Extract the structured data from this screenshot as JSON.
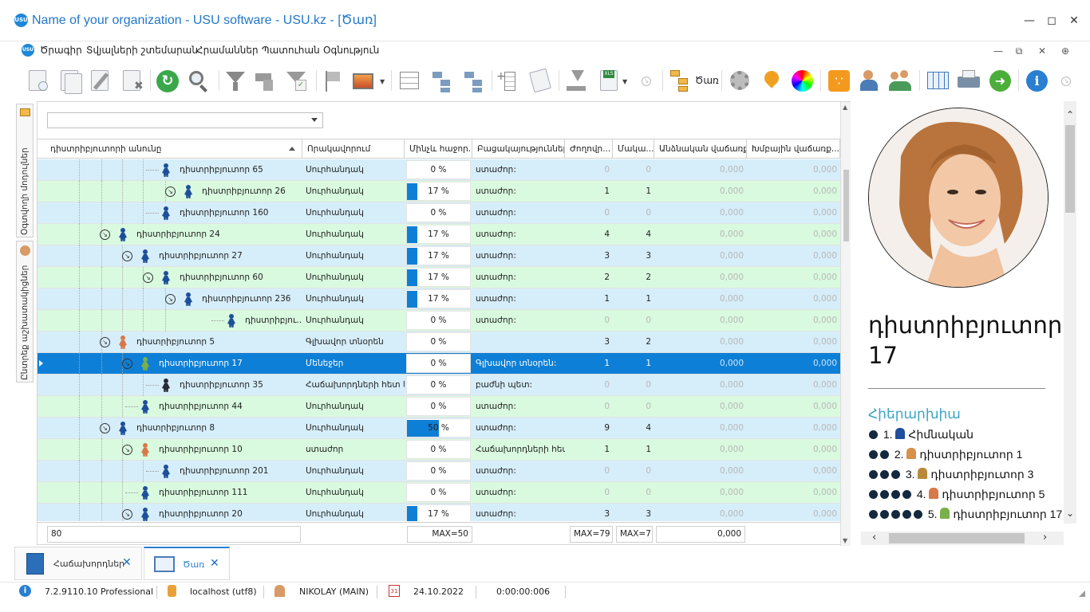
{
  "window": {
    "title": "Name of your organization - USU software - USU.kz - [Ծառ]",
    "logo_text": "USU"
  },
  "menu": {
    "items": [
      "Ծրագիր",
      "Տվյալների շտեմարան",
      "Հրամաններ",
      "Պատուհան",
      "Օգնություն"
    ]
  },
  "toolbar": {
    "tree_label": "Ծառ"
  },
  "sidebar": {
    "tabs": [
      "Օգտվողի մոդուլներ",
      "Ընտրեք աշխատակիցներ"
    ]
  },
  "grid": {
    "filter_value": "",
    "columns": [
      "դիստրիբյուտորի անունը",
      "Որակավորում",
      "Մինչև հաջոր...",
      "Բացակայություններ",
      "Ժողովր...",
      "Մակա...",
      "Անձնական վաճառք...",
      "Խմբային վաճառք..."
    ],
    "rows": [
      {
        "name": "դիստրիբյուտոր 65",
        "qualification": "Սուրհանդակ",
        "progress": 0,
        "pct_text": "0 %",
        "absence": "ստաժոր:",
        "people": "0",
        "level": "0",
        "personal": "0,000",
        "group": "0,000",
        "expander": false,
        "color": "blue"
      },
      {
        "name": "դիստրիբյուտոր 26",
        "qualification": "Սուրհանդակ",
        "progress": 17,
        "pct_text": "17 %",
        "absence": "ստաժոր:",
        "people": "1",
        "level": "1",
        "personal": "0,000",
        "group": "0,000",
        "expander": true,
        "color": "green"
      },
      {
        "name": "դիստրիբյուտոր 160",
        "qualification": "Սուրհանդակ",
        "progress": 0,
        "pct_text": "0 %",
        "absence": "ստաժոր:",
        "people": "0",
        "level": "0",
        "personal": "0,000",
        "group": "0,000",
        "expander": false,
        "color": "blue"
      },
      {
        "name": "դիստրիբյուտոր 24",
        "qualification": "Սուրհանդակ",
        "progress": 17,
        "pct_text": "17 %",
        "absence": "ստաժոր:",
        "people": "4",
        "level": "4",
        "personal": "0,000",
        "group": "0,000",
        "expander": true,
        "color": "green"
      },
      {
        "name": "դիստրիբյուտոր 27",
        "qualification": "Սուրհանդակ",
        "progress": 17,
        "pct_text": "17 %",
        "absence": "ստաժոր:",
        "people": "3",
        "level": "3",
        "personal": "0,000",
        "group": "0,000",
        "expander": true,
        "color": "blue"
      },
      {
        "name": "դիստրիբյուտոր 60",
        "qualification": "Սուրհանդակ",
        "progress": 17,
        "pct_text": "17 %",
        "absence": "ստաժոր:",
        "people": "2",
        "level": "2",
        "personal": "0,000",
        "group": "0,000",
        "expander": true,
        "color": "green"
      },
      {
        "name": "դիստրիբյուտոր 236",
        "qualification": "Սուրհանդակ",
        "progress": 17,
        "pct_text": "17 %",
        "absence": "ստաժոր:",
        "people": "1",
        "level": "1",
        "personal": "0,000",
        "group": "0,000",
        "expander": true,
        "color": "blue"
      },
      {
        "name": "դիստրիբյու...",
        "qualification": "Սուրհանդակ",
        "progress": 0,
        "pct_text": "0 %",
        "absence": "ստաժոր:",
        "people": "0",
        "level": "0",
        "personal": "0,000",
        "group": "0,000",
        "expander": false,
        "color": "green"
      },
      {
        "name": "դիստրիբյուտոր 5",
        "qualification": "Գլխավոր տնօրեն",
        "progress": 0,
        "pct_text": "0 %",
        "absence": "",
        "people": "3",
        "level": "2",
        "personal": "0,000",
        "group": "0,000",
        "expander": true,
        "color": "blue"
      },
      {
        "name": "դիստրիբյուտոր 17",
        "qualification": "Մենեջեր",
        "progress": 0,
        "pct_text": "0 %",
        "absence": "Գլխավոր տնօրեն:",
        "people": "1",
        "level": "1",
        "personal": "0,000",
        "group": "0,000",
        "expander": true,
        "color": "sel"
      },
      {
        "name": "դիստրիբյուտոր 35",
        "qualification": "Հաճախորդների հետ կ...",
        "progress": 0,
        "pct_text": "0 %",
        "absence": "բաժնի պետ:",
        "people": "0",
        "level": "0",
        "personal": "0,000",
        "group": "0,000",
        "expander": false,
        "color": "blue"
      },
      {
        "name": "դիստրիբյուտոր 44",
        "qualification": "Սուրհանդակ",
        "progress": 0,
        "pct_text": "0 %",
        "absence": "ստաժոր:",
        "people": "0",
        "level": "0",
        "personal": "0,000",
        "group": "0,000",
        "expander": false,
        "color": "green"
      },
      {
        "name": "դիստրիբյուտոր 8",
        "qualification": "Սուրհանդակ",
        "progress": 50,
        "pct_text": "50 %",
        "absence": "ստաժոր:",
        "people": "9",
        "level": "4",
        "personal": "0,000",
        "group": "0,000",
        "expander": true,
        "color": "blue"
      },
      {
        "name": "դիստրիբյուտոր 10",
        "qualification": "ստաժոր",
        "progress": 0,
        "pct_text": "0 %",
        "absence": "Հաճախորդների հետ...",
        "people": "1",
        "level": "1",
        "personal": "0,000",
        "group": "0,000",
        "expander": true,
        "color": "green"
      },
      {
        "name": "դիստրիբյուտոր 201",
        "qualification": "Սուրհանդակ",
        "progress": 0,
        "pct_text": "0 %",
        "absence": "ստաժոր:",
        "people": "0",
        "level": "0",
        "personal": "0,000",
        "group": "0,000",
        "expander": false,
        "color": "blue"
      },
      {
        "name": "դիստրիբյուտոր 111",
        "qualification": "Սուրհանդակ",
        "progress": 0,
        "pct_text": "0 %",
        "absence": "ստաժոր:",
        "people": "0",
        "level": "0",
        "personal": "0,000",
        "group": "0,000",
        "expander": false,
        "color": "green"
      },
      {
        "name": "դիստրիբյուտոր 20",
        "qualification": "Սուրհանդակ",
        "progress": 17,
        "pct_text": "17 %",
        "absence": "ստաժոր:",
        "people": "3",
        "level": "3",
        "personal": "0,000",
        "group": "0,000",
        "expander": true,
        "color": "blue"
      }
    ],
    "footer": {
      "count": "80",
      "max_progress": "MAX=50",
      "max_people": "MAX=79",
      "max_level": "MAX=7",
      "sum_personal": "0,000"
    }
  },
  "details": {
    "name": "դիստրիբյուտոր 17",
    "hierarchy_title": "Հիերարխիա",
    "hierarchy": [
      {
        "level": 1,
        "label": "1.",
        "text": "Հիմնական"
      },
      {
        "level": 2,
        "label": "2.",
        "text": "դիստրիբյուտոր 1"
      },
      {
        "level": 3,
        "label": "3.",
        "text": "դիստրիբյուտոր 3"
      },
      {
        "level": 4,
        "label": "4.",
        "text": "դիստրիբյուտոր 5"
      },
      {
        "level": 5,
        "label": "5.",
        "text": "դիստրիբյուտոր 17"
      }
    ]
  },
  "bottom_tabs": [
    {
      "label": "Հաճախորդներ"
    },
    {
      "label": "Ծառ"
    }
  ],
  "status": {
    "version": "7.2.9110.10 Professional",
    "db": "localhost (utf8)",
    "user": "NIKOLAY (MAIN)",
    "date": "24.10.2022",
    "timer": "0:00:00:006"
  },
  "colors": {
    "accent": "#0e7fd6",
    "row_blue": "#d6eefa",
    "row_green": "#d9fadf",
    "hierarchy_title": "#3aa3c7"
  }
}
